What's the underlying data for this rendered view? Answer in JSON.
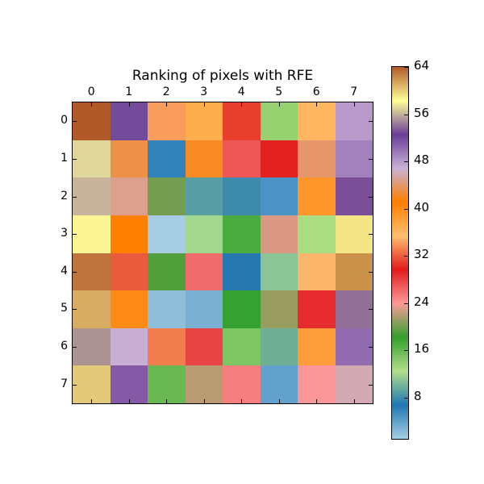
{
  "chart_data": {
    "type": "heatmap",
    "title": "Ranking of pixels with RFE",
    "xlabel": "",
    "ylabel": "",
    "x_ticks": [
      "0",
      "1",
      "2",
      "3",
      "4",
      "5",
      "6",
      "7"
    ],
    "y_ticks": [
      "0",
      "1",
      "2",
      "3",
      "4",
      "5",
      "6",
      "7"
    ],
    "x_tick_position": "top",
    "colormap": "Paired",
    "vmin": 1,
    "vmax": 64,
    "colorbar_ticks": [
      "64",
      "56",
      "48",
      "40",
      "32",
      "24",
      "16",
      "8"
    ],
    "colorbar_tick_values": [
      64,
      56,
      48,
      40,
      32,
      24,
      16,
      8
    ],
    "values": [
      [
        64,
        52,
        37,
        39,
        31,
        14,
        36,
        48
      ],
      [
        57,
        40,
        7,
        41,
        28,
        30,
        43,
        50
      ],
      [
        56,
        44,
        16,
        10,
        9,
        6,
        40,
        52
      ],
      [
        59,
        41,
        1,
        12,
        18,
        44,
        13,
        60
      ],
      [
        63,
        33,
        18,
        27,
        7,
        11,
        36,
        62
      ],
      [
        61,
        40,
        2,
        4,
        19,
        22,
        29,
        54
      ],
      [
        55,
        47,
        34,
        28,
        15,
        10,
        39,
        51
      ],
      [
        60,
        51,
        16,
        56,
        26,
        5,
        24,
        45
      ]
    ],
    "cell_colors": [
      [
        "#b15a29",
        "#734a9c",
        "#f99d5c",
        "#ffae4f",
        "#e83f2e",
        "#96d06f",
        "#ffb660",
        "#b89bca"
      ],
      [
        "#dfd699",
        "#ed9149",
        "#3282bb",
        "#f88a24",
        "#ef5656",
        "#e32121",
        "#e6976b",
        "#a282bc"
      ],
      [
        "#c7b49a",
        "#dba08e",
        "#759d4f",
        "#589ea5",
        "#3d8aaa",
        "#4a93c4",
        "#ff9629",
        "#7a4f98"
      ],
      [
        "#faf494",
        "#ff8000",
        "#a6cde3",
        "#a3d68f",
        "#4aab3f",
        "#da9885",
        "#aadc82",
        "#f3e586"
      ],
      [
        "#bf743e",
        "#ea5a3c",
        "#52a03c",
        "#f06c6c",
        "#2678b1",
        "#8bc496",
        "#fbb66b",
        "#ca924a"
      ],
      [
        "#d9ac64",
        "#ff8a16",
        "#8fbfd8",
        "#7ab0d1",
        "#34a232",
        "#989c5f",
        "#e52b2d",
        "#937097"
      ],
      [
        "#ac9394",
        "#c7b0d4",
        "#f17e4e",
        "#e84345",
        "#7ec664",
        "#6faf98",
        "#fd9c3b",
        "#916cb0"
      ],
      [
        "#e3c97a",
        "#8559a6",
        "#6ab851",
        "#b89b73",
        "#f57e7e",
        "#62a1cc",
        "#fb9698",
        "#d3a9b4"
      ]
    ],
    "colorbar_gradient": [
      "#a6cee3",
      "#1f78b4",
      "#b2df8a",
      "#33a02c",
      "#fb9a99",
      "#e31a1c",
      "#fdbf6f",
      "#ff7f00",
      "#cab2d6",
      "#6a3d9a",
      "#ffff99",
      "#b15928"
    ],
    "grid": false,
    "legend": "colorbar-right"
  }
}
